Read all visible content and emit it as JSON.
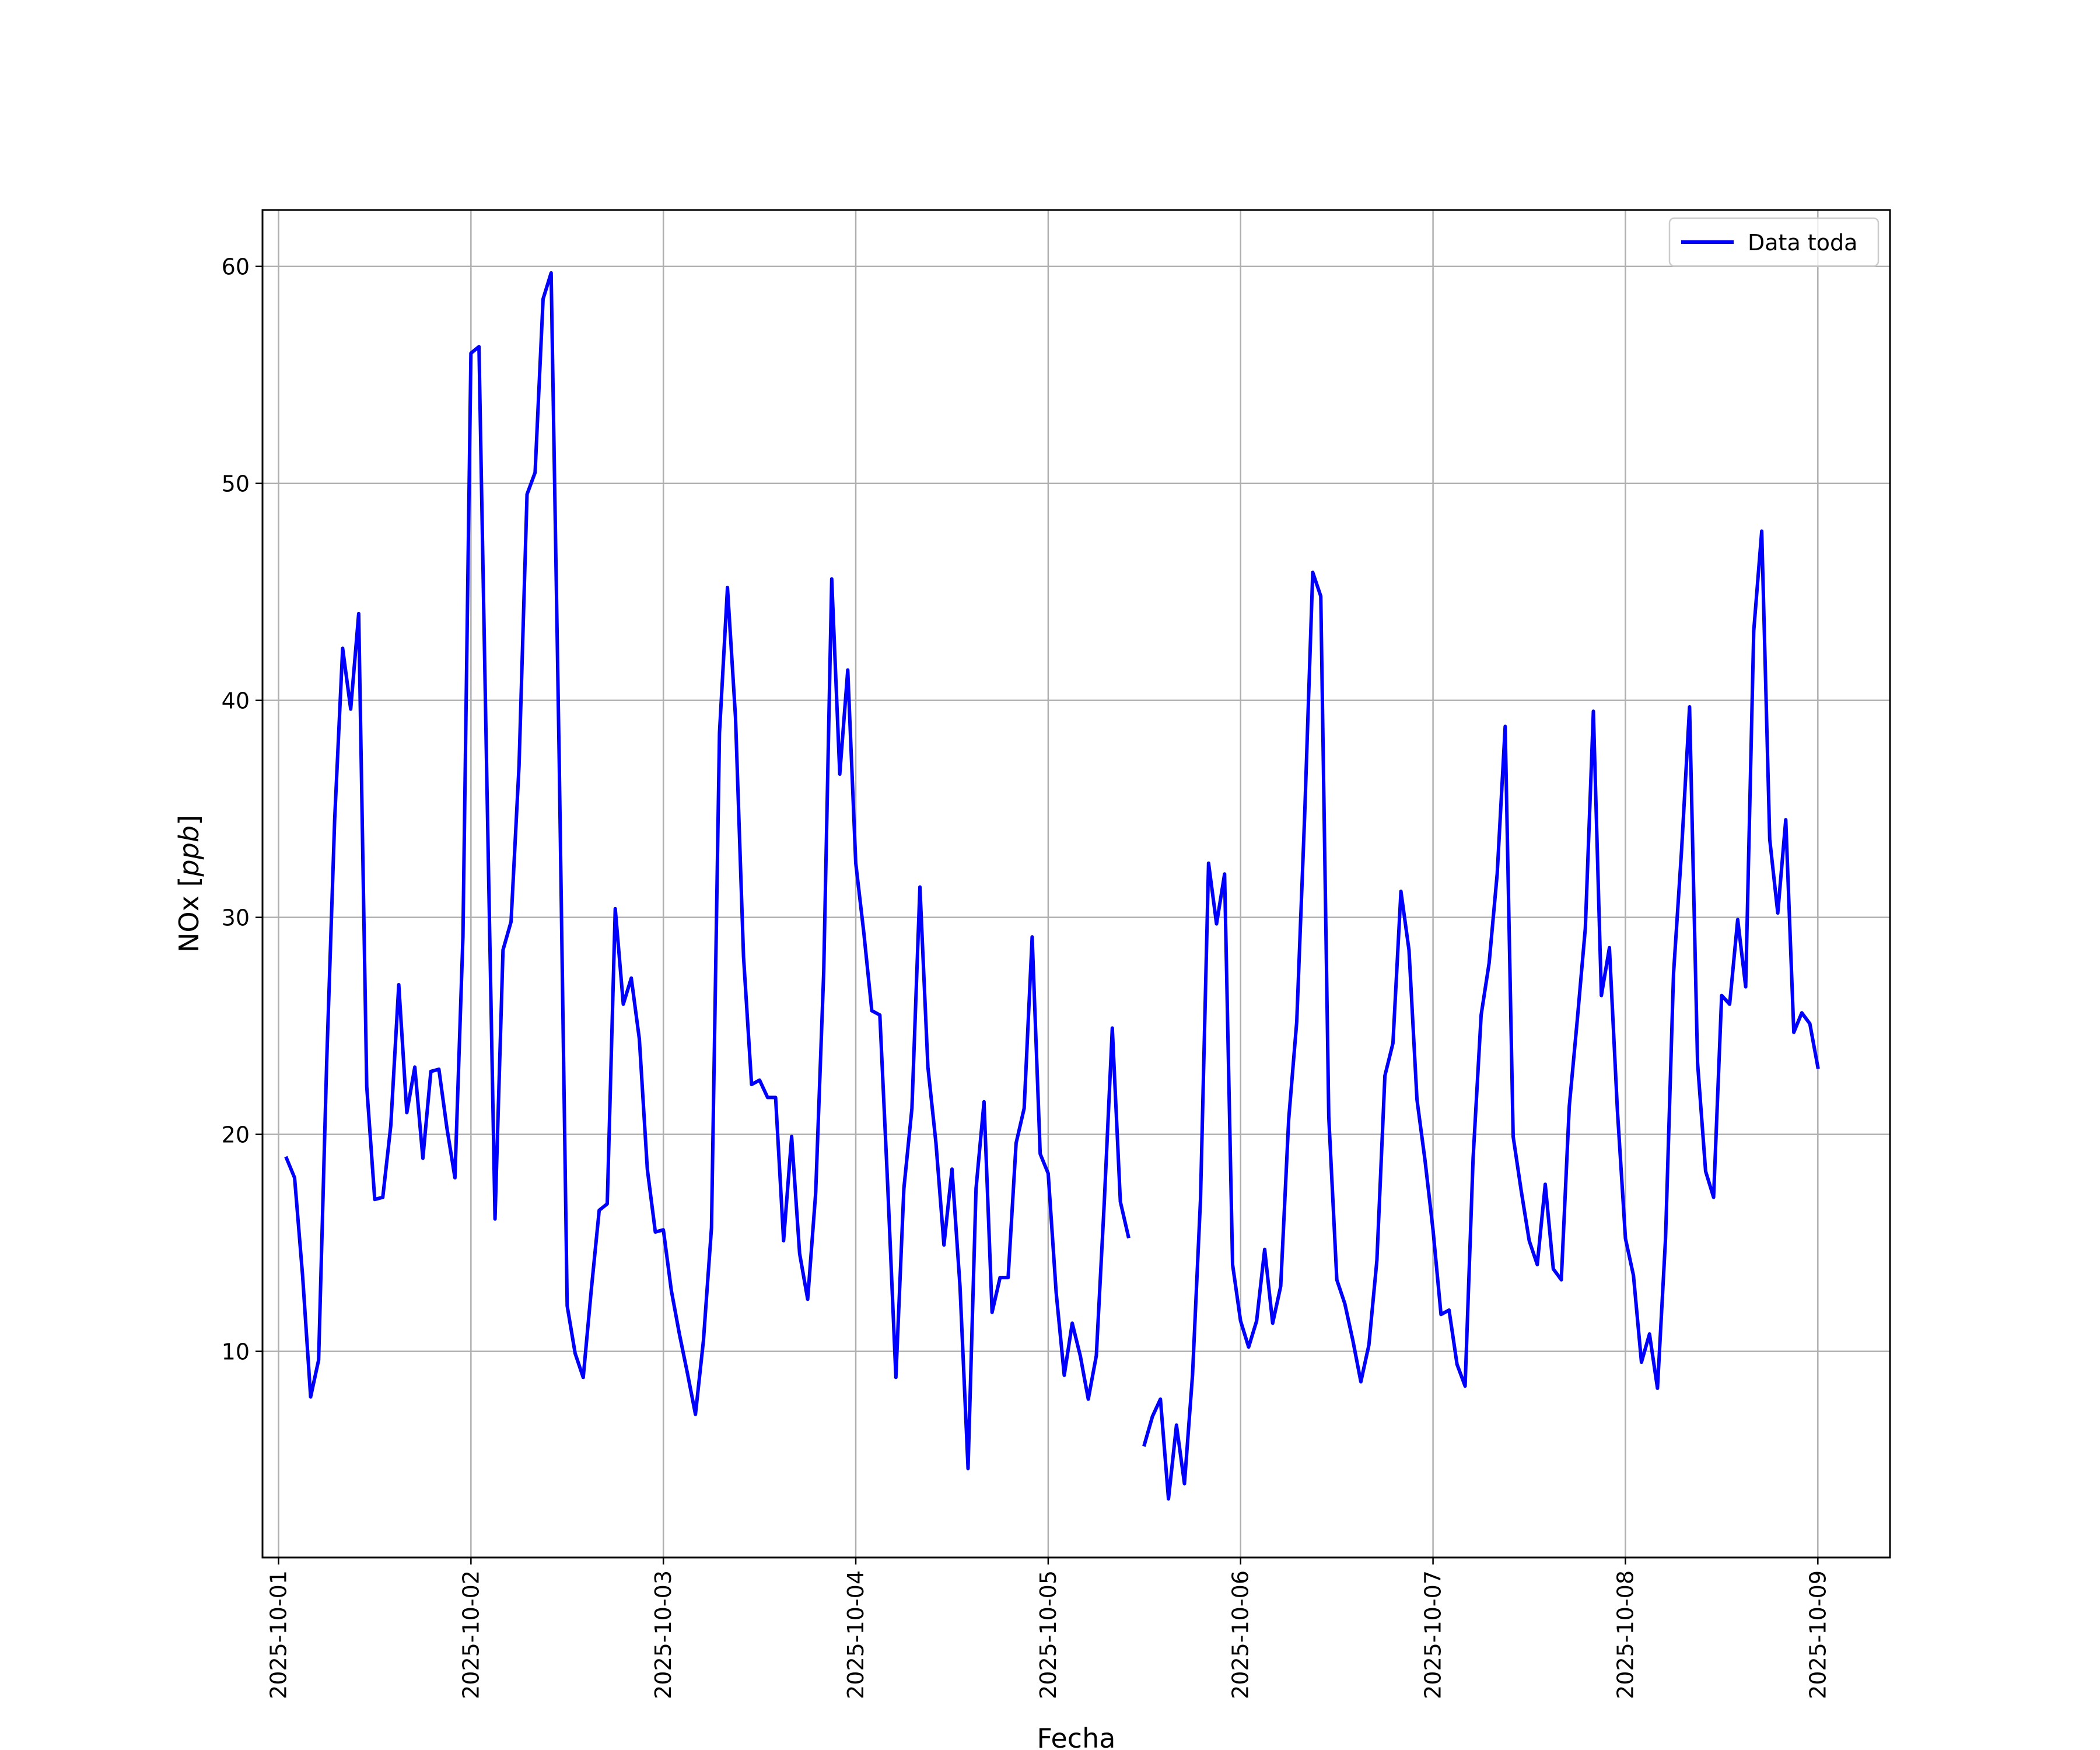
{
  "chart_data": {
    "type": "line",
    "title": "",
    "xlabel": "Fecha",
    "ylabel_main": "NOx [",
    "ylabel_italic": "ppb",
    "ylabel_end": "]",
    "x_ticks": [
      "2025-10-01",
      "2025-10-02",
      "2025-10-03",
      "2025-10-04",
      "2025-10-05",
      "2025-10-06",
      "2025-10-07",
      "2025-10-08",
      "2025-10-09"
    ],
    "y_ticks": [
      10,
      20,
      30,
      40,
      50,
      60
    ],
    "xlim": [
      "2025-09-30T22:00",
      "2025-10-09T09:00"
    ],
    "ylim": [
      0.5,
      62.6
    ],
    "grid": true,
    "legend_position": "top-right",
    "line_color": "#0000ff",
    "series": [
      {
        "name": "Data toda",
        "segments": [
          [
            [
              "2025-10-01T01:00",
              18.9
            ],
            [
              "2025-10-01T02:00",
              18.0
            ],
            [
              "2025-10-01T03:00",
              13.5
            ],
            [
              "2025-10-01T04:00",
              7.9
            ],
            [
              "2025-10-01T05:00",
              9.6
            ],
            [
              "2025-10-01T06:00",
              23.3
            ],
            [
              "2025-10-01T07:00",
              34.5
            ],
            [
              "2025-10-01T08:00",
              42.4
            ],
            [
              "2025-10-01T09:00",
              39.6
            ],
            [
              "2025-10-01T10:00",
              44.0
            ],
            [
              "2025-10-01T11:00",
              22.2
            ],
            [
              "2025-10-01T12:00",
              17.0
            ],
            [
              "2025-10-01T13:00",
              17.1
            ],
            [
              "2025-10-01T14:00",
              20.4
            ],
            [
              "2025-10-01T15:00",
              26.9
            ],
            [
              "2025-10-01T16:00",
              21.0
            ],
            [
              "2025-10-01T17:00",
              23.1
            ],
            [
              "2025-10-01T18:00",
              18.9
            ],
            [
              "2025-10-01T19:00",
              22.9
            ],
            [
              "2025-10-01T20:00",
              23.0
            ],
            [
              "2025-10-01T21:00",
              20.3
            ],
            [
              "2025-10-01T22:00",
              18.0
            ],
            [
              "2025-10-01T23:00",
              29.1
            ],
            [
              "2025-10-02T00:00",
              56.0
            ],
            [
              "2025-10-02T01:00",
              56.3
            ],
            [
              "2025-10-02T02:00",
              36.0
            ],
            [
              "2025-10-02T03:00",
              16.1
            ],
            [
              "2025-10-02T04:00",
              28.5
            ],
            [
              "2025-10-02T05:00",
              29.8
            ],
            [
              "2025-10-02T06:00",
              37.0
            ],
            [
              "2025-10-02T07:00",
              49.5
            ],
            [
              "2025-10-02T08:00",
              50.5
            ],
            [
              "2025-10-02T09:00",
              58.5
            ],
            [
              "2025-10-02T10:00",
              59.7
            ],
            [
              "2025-10-02T11:00",
              37.5
            ],
            [
              "2025-10-02T12:00",
              12.1
            ],
            [
              "2025-10-02T13:00",
              9.9
            ],
            [
              "2025-10-02T14:00",
              8.8
            ],
            [
              "2025-10-02T15:00",
              12.8
            ],
            [
              "2025-10-02T16:00",
              16.5
            ],
            [
              "2025-10-02T17:00",
              16.8
            ],
            [
              "2025-10-02T18:00",
              30.4
            ],
            [
              "2025-10-02T19:00",
              26.0
            ],
            [
              "2025-10-02T20:00",
              27.2
            ],
            [
              "2025-10-02T21:00",
              24.4
            ],
            [
              "2025-10-02T22:00",
              18.4
            ],
            [
              "2025-10-02T23:00",
              15.5
            ],
            [
              "2025-10-03T00:00",
              15.6
            ],
            [
              "2025-10-03T01:00",
              12.8
            ],
            [
              "2025-10-03T02:00",
              10.8
            ],
            [
              "2025-10-03T03:00",
              9.0
            ],
            [
              "2025-10-03T04:00",
              7.1
            ],
            [
              "2025-10-03T05:00",
              10.5
            ],
            [
              "2025-10-03T06:00",
              15.7
            ],
            [
              "2025-10-03T07:00",
              38.5
            ],
            [
              "2025-10-03T08:00",
              45.2
            ],
            [
              "2025-10-03T09:00",
              39.2
            ],
            [
              "2025-10-03T10:00",
              28.2
            ],
            [
              "2025-10-03T11:00",
              22.3
            ],
            [
              "2025-10-03T12:00",
              22.5
            ],
            [
              "2025-10-03T13:00",
              21.7
            ],
            [
              "2025-10-03T14:00",
              21.7
            ],
            [
              "2025-10-03T15:00",
              15.1
            ],
            [
              "2025-10-03T16:00",
              19.9
            ],
            [
              "2025-10-03T17:00",
              14.5
            ],
            [
              "2025-10-03T18:00",
              12.4
            ],
            [
              "2025-10-03T19:00",
              17.3
            ],
            [
              "2025-10-03T20:00",
              27.5
            ],
            [
              "2025-10-03T21:00",
              45.6
            ],
            [
              "2025-10-03T22:00",
              36.6
            ],
            [
              "2025-10-03T23:00",
              41.4
            ],
            [
              "2025-10-04T00:00",
              32.5
            ],
            [
              "2025-10-04T01:00",
              29.3
            ],
            [
              "2025-10-04T02:00",
              25.7
            ],
            [
              "2025-10-04T03:00",
              25.5
            ],
            [
              "2025-10-04T04:00",
              17.5
            ],
            [
              "2025-10-04T05:00",
              8.8
            ],
            [
              "2025-10-04T06:00",
              17.5
            ],
            [
              "2025-10-04T07:00",
              21.2
            ],
            [
              "2025-10-04T08:00",
              31.4
            ],
            [
              "2025-10-04T09:00",
              23.1
            ],
            [
              "2025-10-04T10:00",
              19.6
            ],
            [
              "2025-10-04T11:00",
              14.9
            ],
            [
              "2025-10-04T12:00",
              18.4
            ],
            [
              "2025-10-04T13:00",
              13.0
            ],
            [
              "2025-10-04T14:00",
              4.6
            ],
            [
              "2025-10-04T15:00",
              17.5
            ],
            [
              "2025-10-04T16:00",
              21.5
            ],
            [
              "2025-10-04T17:00",
              11.8
            ],
            [
              "2025-10-04T18:00",
              13.4
            ],
            [
              "2025-10-04T19:00",
              13.4
            ],
            [
              "2025-10-04T20:00",
              19.6
            ],
            [
              "2025-10-04T21:00",
              21.2
            ],
            [
              "2025-10-04T22:00",
              29.1
            ],
            [
              "2025-10-04T23:00",
              19.1
            ],
            [
              "2025-10-05T00:00",
              18.2
            ],
            [
              "2025-10-05T01:00",
              12.7
            ],
            [
              "2025-10-05T02:00",
              8.9
            ],
            [
              "2025-10-05T03:00",
              11.3
            ],
            [
              "2025-10-05T04:00",
              9.8
            ],
            [
              "2025-10-05T05:00",
              7.8
            ],
            [
              "2025-10-05T06:00",
              9.8
            ],
            [
              "2025-10-05T07:00",
              16.9
            ],
            [
              "2025-10-05T08:00",
              24.9
            ],
            [
              "2025-10-05T09:00",
              16.9
            ],
            [
              "2025-10-05T10:00",
              15.3
            ]
          ],
          [
            [
              "2025-10-05T12:00",
              5.7
            ],
            [
              "2025-10-05T13:00",
              7.0
            ],
            [
              "2025-10-05T14:00",
              7.8
            ],
            [
              "2025-10-05T15:00",
              3.2
            ],
            [
              "2025-10-05T16:00",
              6.6
            ],
            [
              "2025-10-05T17:00",
              3.9
            ],
            [
              "2025-10-05T18:00",
              8.9
            ],
            [
              "2025-10-05T19:00",
              17.0
            ],
            [
              "2025-10-05T20:00",
              32.5
            ],
            [
              "2025-10-05T21:00",
              29.7
            ],
            [
              "2025-10-05T22:00",
              32.0
            ],
            [
              "2025-10-05T23:00",
              14.0
            ],
            [
              "2025-10-06T00:00",
              11.4
            ],
            [
              "2025-10-06T01:00",
              10.2
            ],
            [
              "2025-10-06T02:00",
              11.4
            ],
            [
              "2025-10-06T03:00",
              14.7
            ],
            [
              "2025-10-06T04:00",
              11.3
            ],
            [
              "2025-10-06T05:00",
              13.0
            ],
            [
              "2025-10-06T06:00",
              20.7
            ],
            [
              "2025-10-06T07:00",
              25.2
            ],
            [
              "2025-10-06T08:00",
              34.8
            ],
            [
              "2025-10-06T09:00",
              45.9
            ],
            [
              "2025-10-06T10:00",
              44.8
            ],
            [
              "2025-10-06T11:00",
              20.8
            ],
            [
              "2025-10-06T12:00",
              13.3
            ],
            [
              "2025-10-06T13:00",
              12.2
            ],
            [
              "2025-10-06T14:00",
              10.5
            ],
            [
              "2025-10-06T15:00",
              8.6
            ],
            [
              "2025-10-06T16:00",
              10.3
            ],
            [
              "2025-10-06T17:00",
              14.2
            ],
            [
              "2025-10-06T18:00",
              22.7
            ],
            [
              "2025-10-06T19:00",
              24.2
            ],
            [
              "2025-10-06T20:00",
              31.2
            ],
            [
              "2025-10-06T21:00",
              28.5
            ],
            [
              "2025-10-06T22:00",
              21.6
            ],
            [
              "2025-10-06T23:00",
              18.8
            ],
            [
              "2025-10-07T00:00",
              15.6
            ],
            [
              "2025-10-07T01:00",
              11.7
            ],
            [
              "2025-10-07T02:00",
              11.9
            ],
            [
              "2025-10-07T03:00",
              9.4
            ],
            [
              "2025-10-07T04:00",
              8.4
            ],
            [
              "2025-10-07T05:00",
              18.9
            ],
            [
              "2025-10-07T06:00",
              25.5
            ],
            [
              "2025-10-07T07:00",
              27.9
            ],
            [
              "2025-10-07T08:00",
              32.0
            ],
            [
              "2025-10-07T09:00",
              38.8
            ],
            [
              "2025-10-07T10:00",
              19.9
            ],
            [
              "2025-10-07T11:00",
              17.4
            ],
            [
              "2025-10-07T12:00",
              15.1
            ],
            [
              "2025-10-07T13:00",
              14.0
            ],
            [
              "2025-10-07T14:00",
              17.7
            ],
            [
              "2025-10-07T15:00",
              13.8
            ],
            [
              "2025-10-07T16:00",
              13.3
            ],
            [
              "2025-10-07T17:00",
              21.3
            ],
            [
              "2025-10-07T18:00",
              25.3
            ],
            [
              "2025-10-07T19:00",
              29.5
            ],
            [
              "2025-10-07T20:00",
              39.5
            ],
            [
              "2025-10-07T21:00",
              26.4
            ],
            [
              "2025-10-07T22:00",
              28.6
            ],
            [
              "2025-10-07T23:00",
              21.1
            ],
            [
              "2025-10-08T00:00",
              15.2
            ],
            [
              "2025-10-08T01:00",
              13.5
            ],
            [
              "2025-10-08T02:00",
              9.5
            ],
            [
              "2025-10-08T03:00",
              10.8
            ],
            [
              "2025-10-08T04:00",
              8.3
            ],
            [
              "2025-10-08T05:00",
              15.2
            ],
            [
              "2025-10-08T06:00",
              27.4
            ],
            [
              "2025-10-08T07:00",
              33.1
            ],
            [
              "2025-10-08T08:00",
              39.7
            ],
            [
              "2025-10-08T09:00",
              23.3
            ],
            [
              "2025-10-08T10:00",
              18.3
            ],
            [
              "2025-10-08T11:00",
              17.1
            ],
            [
              "2025-10-08T12:00",
              26.4
            ],
            [
              "2025-10-08T13:00",
              26.0
            ],
            [
              "2025-10-08T14:00",
              29.9
            ],
            [
              "2025-10-08T15:00",
              26.8
            ],
            [
              "2025-10-08T16:00",
              43.2
            ],
            [
              "2025-10-08T17:00",
              47.8
            ],
            [
              "2025-10-08T18:00",
              33.6
            ],
            [
              "2025-10-08T19:00",
              30.2
            ],
            [
              "2025-10-08T20:00",
              34.5
            ],
            [
              "2025-10-08T21:00",
              24.7
            ],
            [
              "2025-10-08T22:00",
              25.6
            ],
            [
              "2025-10-08T23:00",
              25.1
            ],
            [
              "2025-10-09T00:00",
              23.1
            ]
          ]
        ]
      }
    ]
  }
}
